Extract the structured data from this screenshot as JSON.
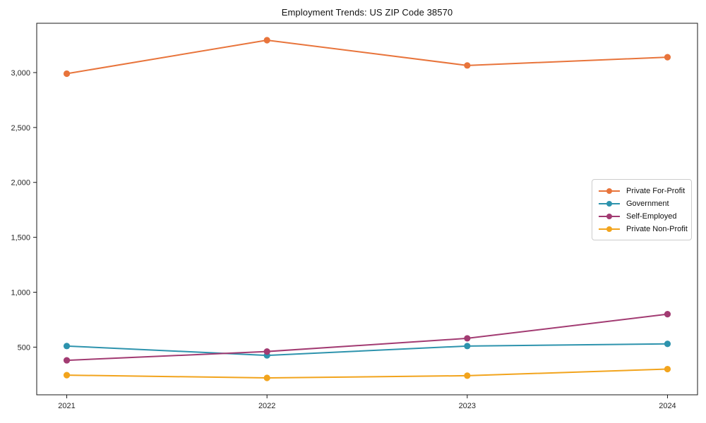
{
  "figure": {
    "title": "Employment Trends: US ZIP Code 38570"
  },
  "chart_data": {
    "type": "line",
    "title": "Employment Trends: US ZIP Code 38570",
    "xlabel": "",
    "ylabel": "",
    "grid": false,
    "legend_position": "center-right",
    "x": [
      2021,
      2022,
      2023,
      2024
    ],
    "x_tick_labels": [
      "2021",
      "2022",
      "2023",
      "2024"
    ],
    "y_ticks": [
      500,
      1000,
      1500,
      2000,
      2500,
      3000
    ],
    "y_tick_labels": [
      "500",
      "1,000",
      "1,500",
      "2,000",
      "2,500",
      "3,000"
    ],
    "xlim": [
      2020.85,
      2024.15
    ],
    "ylim": [
      66,
      3449
    ],
    "series": [
      {
        "name": "Private For-Profit",
        "color": "#e8743b",
        "values": [
          2990,
          3295,
          3065,
          3140
        ]
      },
      {
        "name": "Government",
        "color": "#2d93ad",
        "values": [
          510,
          425,
          510,
          530
        ]
      },
      {
        "name": "Self-Employed",
        "color": "#a23b72",
        "values": [
          380,
          460,
          580,
          800
        ]
      },
      {
        "name": "Private Non-Profit",
        "color": "#f2a41d",
        "values": [
          245,
          220,
          240,
          300
        ]
      }
    ],
    "axis_color": "#1a1a1a",
    "tick_label_color": "#262626"
  }
}
